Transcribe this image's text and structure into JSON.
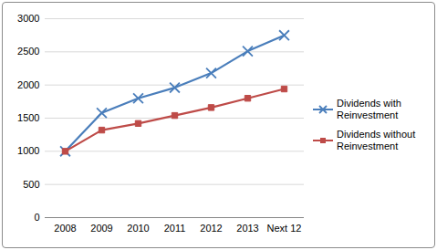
{
  "chart_data": {
    "type": "line",
    "categories": [
      "2008",
      "2009",
      "2010",
      "2011",
      "2012",
      "2013",
      "Next 12"
    ],
    "series": [
      {
        "name": "Dividends with Reinvestment",
        "color": "#4a7ebb",
        "marker": "x",
        "values": [
          1000,
          1580,
          1800,
          1960,
          2180,
          2510,
          2750
        ]
      },
      {
        "name": "Dividends without Reinvestment",
        "color": "#be4b48",
        "marker": "square",
        "values": [
          1000,
          1320,
          1420,
          1540,
          1660,
          1800,
          1940
        ]
      }
    ],
    "ylim": [
      0,
      3000
    ],
    "yticks": [
      0,
      500,
      1000,
      1500,
      2000,
      2500,
      3000
    ],
    "grid": true,
    "legend": "right"
  }
}
